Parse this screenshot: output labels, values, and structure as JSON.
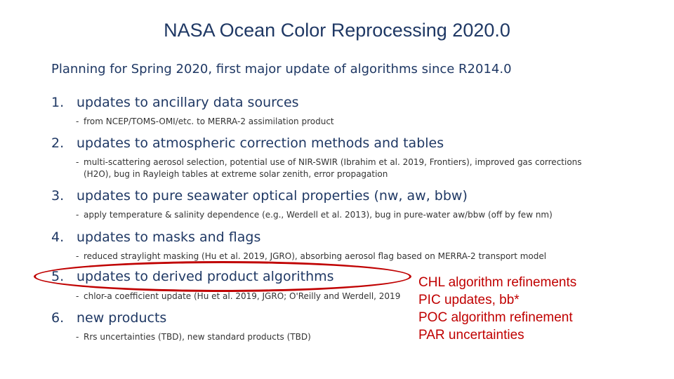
{
  "title": "NASA Ocean Color Reprocessing 2020.0",
  "intro": "Planning for Spring 2020, first major update of algorithms since R2014.0",
  "items": [
    {
      "num": "1.",
      "label": "updates to ancillary data sources",
      "sub": [
        "from NCEP/TOMS-OMI/etc. to MERRA-2 assimilation product"
      ]
    },
    {
      "num": "2.",
      "label": "updates to atmospheric correction methods and tables",
      "sub": [
        "multi-scattering aerosol selection, potential use of NIR-SWIR (Ibrahim et al. 2019, Frontiers), improved gas corrections",
        "(H2O), bug in Rayleigh tables at extreme solar zenith, error propagation"
      ]
    },
    {
      "num": "3.",
      "label": "updates to pure seawater optical properties (nw, aw, bbw)",
      "sub": [
        "apply temperature & salinity dependence (e.g., Werdell et al. 2013), bug in pure-water aw/bbw (off by few nm)"
      ]
    },
    {
      "num": "4.",
      "label": "updates to masks and flags",
      "sub": [
        "reduced straylight masking (Hu et al. 2019, JGRO), absorbing aerosol flag based on MERRA-2 transport model"
      ]
    },
    {
      "num": "5.",
      "label": "updates to derived product algorithms",
      "sub": [
        "chlor-a coefficient update (Hu et al. 2019, JGRO; O'Reilly and Werdell, 2019"
      ]
    },
    {
      "num": "6.",
      "label": "new products",
      "sub": [
        "Rrs uncertainties (TBD), new standard products (TBD)"
      ]
    }
  ],
  "dash": "-",
  "callout": [
    "CHL algorithm refinements",
    "PIC updates, bb*",
    "POC algorithm refinement",
    "PAR uncertainties"
  ],
  "colors": {
    "text": "#1f3864",
    "highlight": "#c00000"
  }
}
